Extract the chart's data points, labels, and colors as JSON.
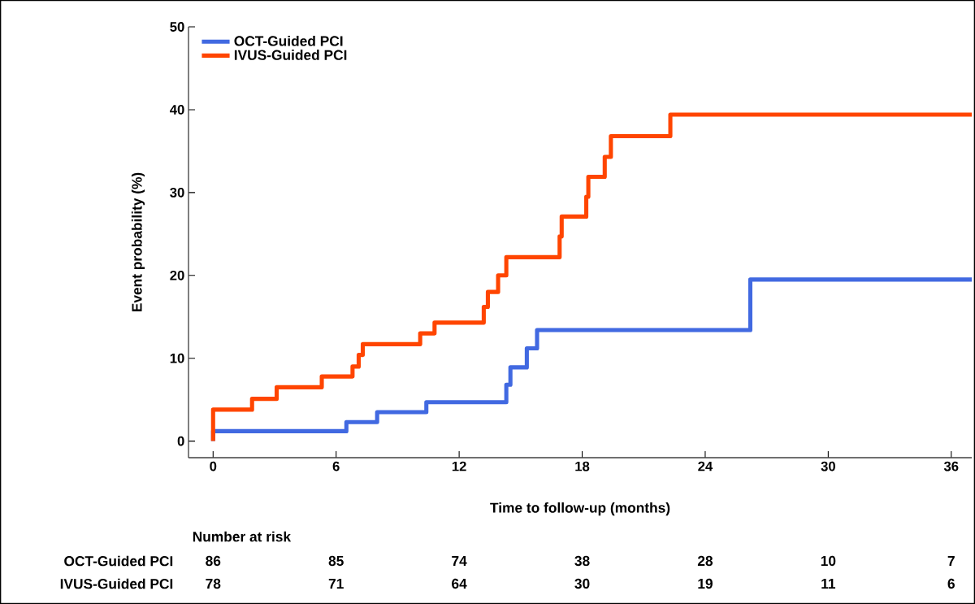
{
  "chart_data": {
    "type": "step",
    "xlabel": "Time to follow-up (months)",
    "ylabel": "Event probability (%)",
    "xlim": [
      -1.2,
      37
    ],
    "ylim": [
      -2,
      50
    ],
    "xticks": [
      0,
      6,
      12,
      18,
      24,
      30,
      36
    ],
    "yticks": [
      0,
      10,
      20,
      30,
      40,
      50
    ],
    "legend": "top left",
    "grid": false,
    "marker": "none",
    "line_style": "solid",
    "series": [
      {
        "name": "OCT-Guided PCI",
        "color": "#4169e1",
        "x": [
          0,
          0,
          6.5,
          8.0,
          10.4,
          14.3,
          14.5,
          15.3,
          15.8,
          26.2,
          37
        ],
        "values": [
          0,
          1.2,
          2.3,
          3.5,
          4.7,
          6.8,
          8.9,
          11.2,
          13.4,
          19.5,
          19.5
        ]
      },
      {
        "name": "IVUS-Guided PCI",
        "color": "#ff4500",
        "x": [
          0,
          0,
          1.9,
          3.1,
          5.3,
          6.8,
          7.1,
          7.3,
          10.1,
          10.8,
          13.2,
          13.4,
          13.9,
          14.3,
          16.9,
          17.0,
          18.2,
          18.3,
          19.1,
          19.4,
          22.3,
          37
        ],
        "values": [
          0,
          3.8,
          5.1,
          6.5,
          7.8,
          9.0,
          10.4,
          11.7,
          13.0,
          14.3,
          16.2,
          18.0,
          20.0,
          22.2,
          24.7,
          27.1,
          29.5,
          31.9,
          34.3,
          36.8,
          39.4,
          39.4
        ]
      }
    ],
    "annotations": [
      "Number at risk",
      "OCT-Guided PCI",
      "86",
      "85",
      "74",
      "38",
      "28",
      "10",
      "7",
      "IVUS-Guided PCI",
      "78",
      "71",
      "64",
      "30",
      "19",
      "11",
      "6"
    ]
  }
}
